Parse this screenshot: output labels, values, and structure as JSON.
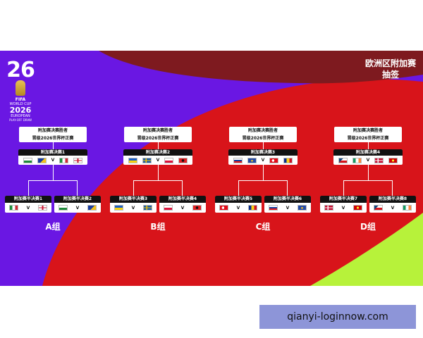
{
  "header": {
    "title_line1": "欧洲区附加赛",
    "title_line2": "抽签"
  },
  "logo": {
    "number": "26",
    "line1": "FIFA",
    "line2": "WORLD CUP",
    "line3": "2026",
    "line4": "EUROPEAN",
    "line5": "PLAY-OFF DRAW"
  },
  "groups": [
    {
      "winner_line1": "附加赛决赛胜者",
      "winner_line2": "晋级2026世界杯正赛",
      "final_label": "附加赛决赛1",
      "final_flags": [
        "wales",
        "bosnia",
        "italy",
        "northern-ireland"
      ],
      "semis": [
        {
          "label": "附加赛半决赛1",
          "flags": [
            "italy",
            "northern-ireland"
          ]
        },
        {
          "label": "附加赛半决赛2",
          "flags": [
            "wales",
            "bosnia"
          ]
        }
      ],
      "group_label": "A组"
    },
    {
      "winner_line1": "附加赛决赛胜者",
      "winner_line2": "晋级2026世界杯正赛",
      "final_label": "附加赛决赛2",
      "final_flags": [
        "ukraine",
        "sweden",
        "poland",
        "albania"
      ],
      "semis": [
        {
          "label": "附加赛半决赛3",
          "flags": [
            "ukraine",
            "sweden"
          ]
        },
        {
          "label": "附加赛半决赛4",
          "flags": [
            "poland",
            "albania"
          ]
        }
      ],
      "group_label": "B组"
    },
    {
      "winner_line1": "附加赛决赛胜者",
      "winner_line2": "晋级2026世界杯正赛",
      "final_label": "附加赛决赛3",
      "final_flags": [
        "slovakia",
        "kosovo",
        "turkey",
        "romania"
      ],
      "semis": [
        {
          "label": "附加赛半决赛5",
          "flags": [
            "turkey",
            "romania"
          ]
        },
        {
          "label": "附加赛半决赛6",
          "flags": [
            "slovakia",
            "kosovo"
          ]
        }
      ],
      "group_label": "C组"
    },
    {
      "winner_line1": "附加赛决赛胜者",
      "winner_line2": "晋级2026世界杯正赛",
      "final_label": "附加赛决赛4",
      "final_flags": [
        "czechia",
        "ireland",
        "denmark",
        "north-macedonia"
      ],
      "semis": [
        {
          "label": "附加赛半决赛7",
          "flags": [
            "denmark",
            "north-macedonia"
          ]
        },
        {
          "label": "附加赛半决赛8",
          "flags": [
            "czechia",
            "ireland"
          ]
        }
      ],
      "group_label": "D组"
    }
  ],
  "vs_symbol": "V",
  "footer": {
    "text": "qianyi-loginnow.com"
  },
  "colors": {
    "purple": "#6a17e3",
    "red": "#d8141a",
    "maroon": "#7e1a1f",
    "lime": "#b7f23a",
    "footer_bg": "#8d95d8"
  }
}
